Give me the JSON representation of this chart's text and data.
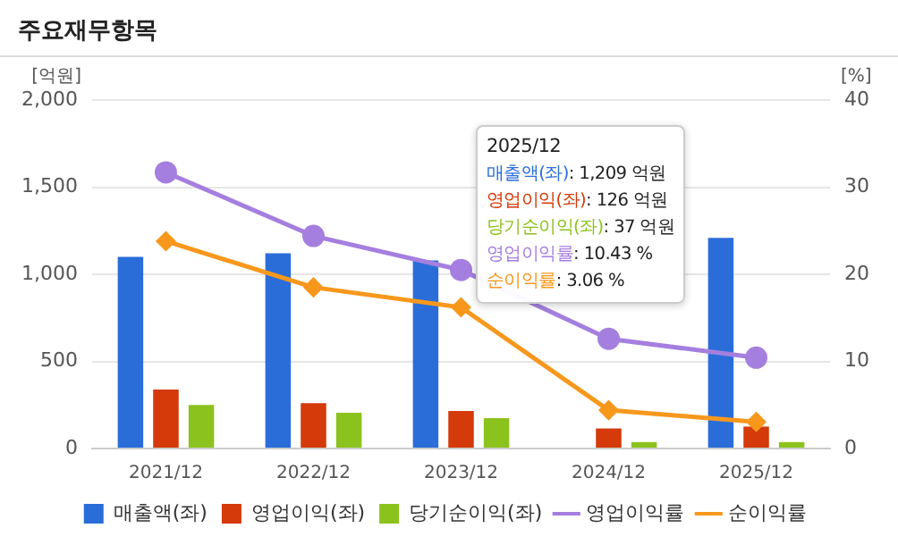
{
  "chart_data": {
    "type": "bar",
    "title": "주요재무항목",
    "ylabel": "[억원]",
    "y2label": "[%]",
    "categories": [
      "2021/12",
      "2022/12",
      "2023/12",
      "2024/12",
      "2025/12"
    ],
    "series": [
      {
        "name": "매출액(좌)",
        "color": "#2a6dd9",
        "values": [
          1100,
          1120,
          1080,
          null,
          1209
        ]
      },
      {
        "name": "영업이익(좌)",
        "color": "#d43a0a",
        "values": [
          338,
          260,
          215,
          115,
          126
        ]
      },
      {
        "name": "당기순이익(좌)",
        "color": "#8cc21e",
        "values": [
          250,
          205,
          174,
          37,
          37
        ]
      },
      {
        "name": "영업이익률",
        "color": "#a57fdf",
        "type": "line",
        "axis": "y2",
        "marker": "circle",
        "values": [
          31.7,
          24.4,
          20.5,
          12.6,
          10.43
        ]
      },
      {
        "name": "순이익률",
        "color": "#f7981d",
        "type": "line",
        "axis": "y2",
        "marker": "diamond",
        "values": [
          23.8,
          18.5,
          16.2,
          4.4,
          3.06
        ]
      }
    ],
    "ylim": [
      0,
      2000
    ],
    "yticks": [
      0,
      {
        "value": 500,
        "label": "500"
      },
      {
        "value": 1000,
        "label": "1,000"
      },
      {
        "value": 1500,
        "label": "1,500"
      },
      {
        "value": 2000,
        "label": "2,000"
      }
    ],
    "y2lim": [
      0,
      40
    ],
    "y2ticks": [
      0,
      10,
      20,
      30,
      40
    ],
    "grid": "y",
    "legend": "bottom",
    "annotations": [
      "2025/12",
      "매출액(좌): 1,209 억원",
      "영업이익(좌): 126 억원",
      "당기순이익(좌): 37 억원",
      "영업이익률: 10.43 %",
      "순이익률: 3.06 %"
    ]
  }
}
